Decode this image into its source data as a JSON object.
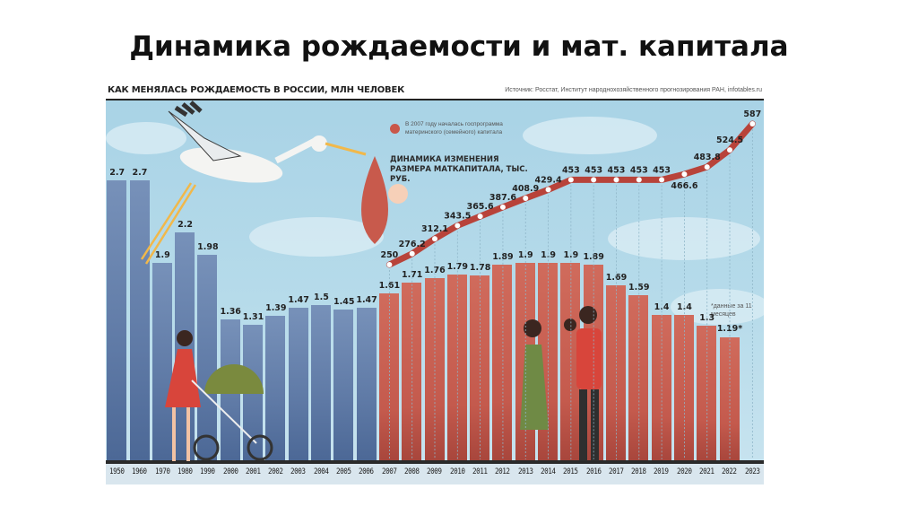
{
  "slide": {
    "title": "Динамика рождаемости и мат. капитала"
  },
  "infographic": {
    "title": "КАК МЕНЯЛАСЬ РОЖДАЕМОСТЬ В РОССИИ, МЛН ЧЕЛОВЕК",
    "source": "Источник: Росстат, Институт народнохозяйственного прогнозирования РАН, infotables.ru",
    "legend_note": "В 2007 году началась госпрограмма материнского (семейного) капитала",
    "capital_title": "ДИНАМИКА ИЗМЕНЕНИЯ РАЗМЕРА МАТКАПИТАЛА, ТЫС. РУБ.",
    "footnote": "*данные за 11 месяцев",
    "colors": {
      "pre_program_bars": "#6a84ae",
      "program_bars": "#c8604f",
      "capital_line": "#b8433a",
      "background": "#b6dbea"
    }
  },
  "chart_data": [
    {
      "type": "bar",
      "title": "КАК МЕНЯЛАСЬ РОЖДАЕМОСТЬ В РОССИИ, МЛН ЧЕЛОВЕК",
      "xlabel": "",
      "ylabel": "млн человек",
      "categories": [
        "1950",
        "1960",
        "1970",
        "1980",
        "1990",
        "2000",
        "2001",
        "2002",
        "2003",
        "2004",
        "2005",
        "2006",
        "2007",
        "2008",
        "2009",
        "2010",
        "2011",
        "2012",
        "2013",
        "2014",
        "2015",
        "2016",
        "2017",
        "2018",
        "2019",
        "2020",
        "2021",
        "2022",
        "2023"
      ],
      "values": [
        2.7,
        2.7,
        1.9,
        2.2,
        1.98,
        1.36,
        1.31,
        1.39,
        1.47,
        1.5,
        1.45,
        1.47,
        1.61,
        1.71,
        1.76,
        1.79,
        1.78,
        1.89,
        1.9,
        1.9,
        1.9,
        1.89,
        1.69,
        1.59,
        1.4,
        1.4,
        1.3,
        1.19,
        null
      ],
      "labels": [
        "2.7",
        "2.7",
        "1.9",
        "2.2",
        "1.98",
        "1.36",
        "1.31",
        "1.39",
        "1.47",
        "1.5",
        "1.45",
        "1.47",
        "1.61",
        "1.71",
        "1.76",
        "1.79",
        "1.78",
        "1.89",
        "1.9",
        "1.9",
        "1.9",
        "1.89",
        "1.69",
        "1.59",
        "1.4",
        "1.4",
        "1.3",
        "1.19*",
        ""
      ],
      "color_groups": {
        "before_2007": "#6a84ae",
        "from_2007": "#c8604f"
      },
      "annotations": [
        "*данные за 11 месяцев"
      ],
      "ylim": [
        0,
        2.9
      ],
      "grid": false
    },
    {
      "type": "line",
      "title": "ДИНАМИКА ИЗМЕНЕНИЯ РАЗМЕРА МАТКАПИТАЛА, ТЫС. РУБ.",
      "xlabel": "",
      "ylabel": "тыс. руб.",
      "x": [
        "2007",
        "2008",
        "2009",
        "2010",
        "2011",
        "2012",
        "2013",
        "2014",
        "2015",
        "2016",
        "2017",
        "2018",
        "2019",
        "2020",
        "2021",
        "2022",
        "2023"
      ],
      "values": [
        250,
        276.2,
        312.1,
        343.5,
        365.6,
        387.6,
        408.9,
        429.4,
        453,
        453,
        453,
        453,
        453,
        466.6,
        483.8,
        524.5,
        587
      ],
      "labels": [
        "250",
        "276.2",
        "312.1",
        "343.5",
        "365.6",
        "387.6",
        "408.9",
        "429.4",
        "453",
        "453",
        "453",
        "453",
        "453",
        "466.6",
        "483.8",
        "524.5",
        "587"
      ],
      "legend": [
        "В 2007 году началась госпрограмма материнского (семейного) капитала"
      ]
    }
  ]
}
